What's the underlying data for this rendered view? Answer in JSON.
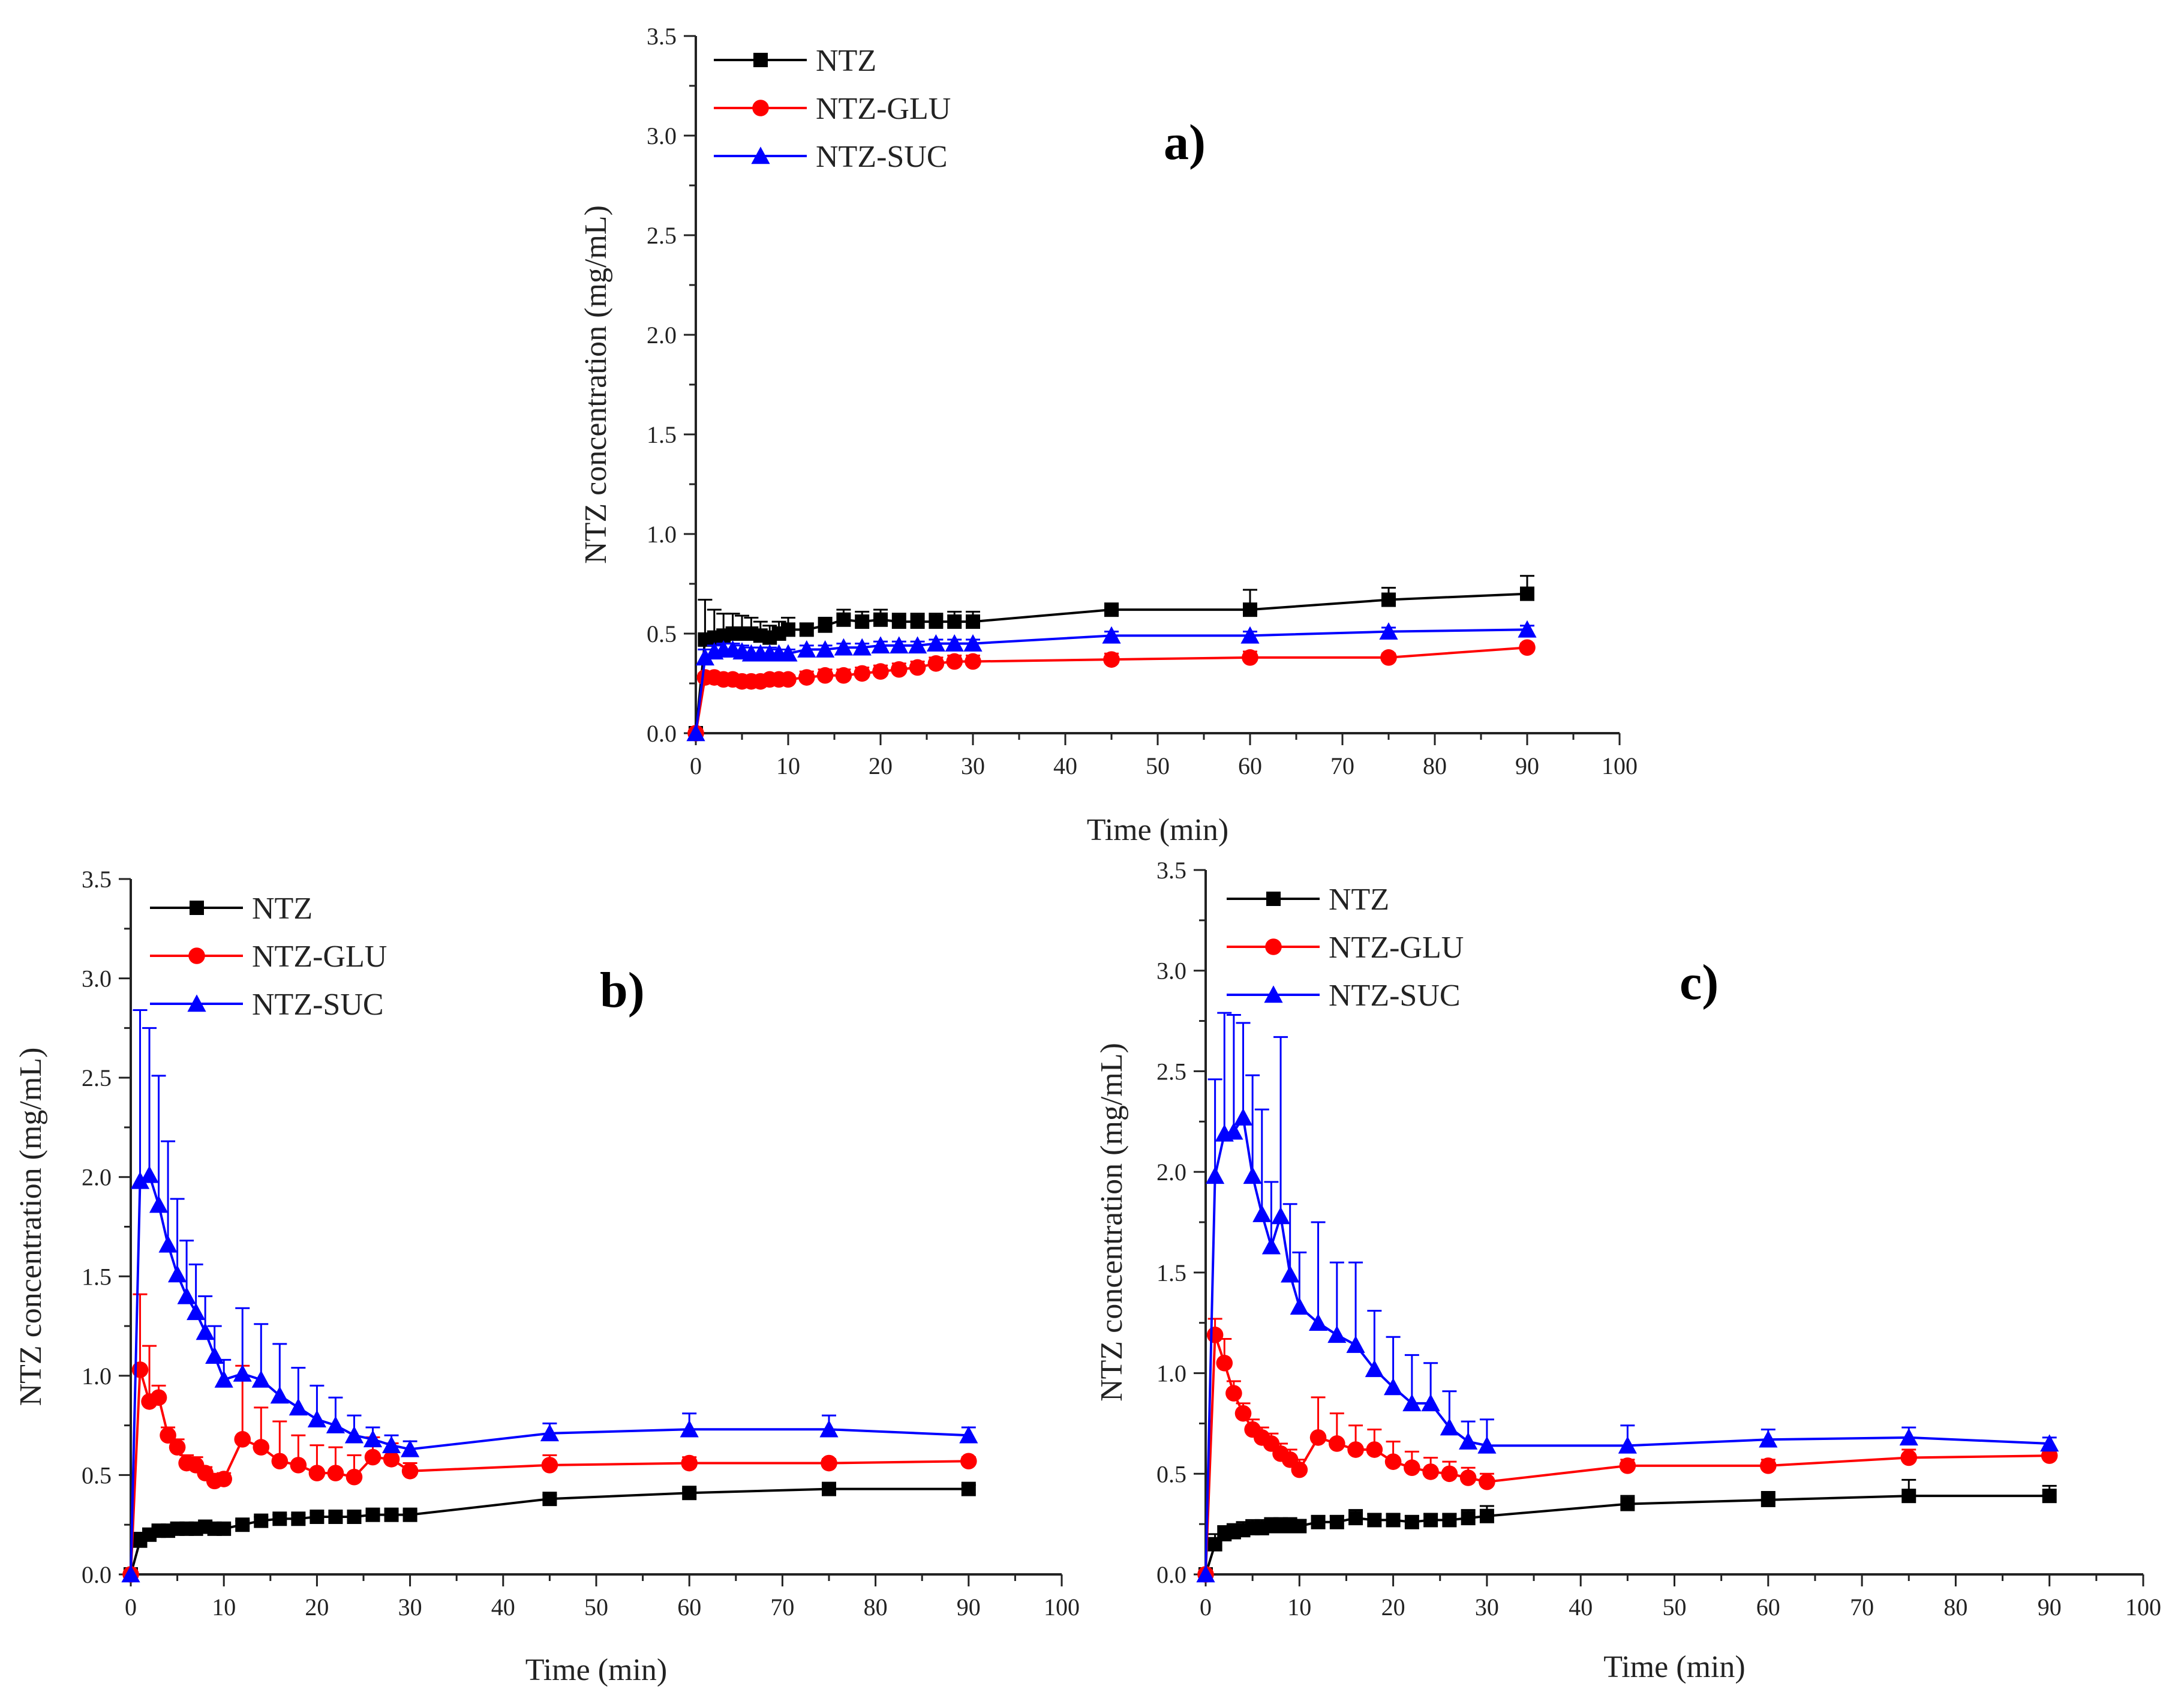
{
  "figure": {
    "series_styles": [
      {
        "name": "NTZ",
        "color": "#000000",
        "marker": "square"
      },
      {
        "name": "NTZ-GLU",
        "color": "#ff0000",
        "marker": "circle"
      },
      {
        "name": "NTZ-SUC",
        "color": "#0000ff",
        "marker": "triangle"
      }
    ]
  },
  "chart_data": [
    {
      "type": "line",
      "panel": "a)",
      "title": "a)",
      "xlabel": "Time (min)",
      "ylabel": "NTZ concentration (mg/mL)",
      "xlim": [
        0,
        100
      ],
      "ylim": [
        0,
        3.5
      ],
      "xticks": [
        "0",
        "10",
        "20",
        "30",
        "40",
        "50",
        "60",
        "70",
        "80",
        "90",
        "100"
      ],
      "yticks": [
        "0.0",
        "0.5",
        "1.0",
        "1.5",
        "2.0",
        "2.5",
        "3.0",
        "3.5"
      ],
      "legend": [
        "NTZ",
        "NTZ-GLU",
        "NTZ-SUC"
      ],
      "series": [
        {
          "name": "NTZ",
          "x": [
            0,
            1,
            2,
            3,
            4,
            5,
            6,
            7,
            8,
            9,
            10,
            12,
            14,
            16,
            18,
            20,
            22,
            24,
            26,
            28,
            30,
            45,
            60,
            75,
            90
          ],
          "y": [
            0,
            0.47,
            0.48,
            0.49,
            0.5,
            0.5,
            0.5,
            0.49,
            0.48,
            0.5,
            0.52,
            0.52,
            0.54,
            0.57,
            0.56,
            0.57,
            0.56,
            0.56,
            0.56,
            0.56,
            0.56,
            0.62,
            0.62,
            0.67,
            0.7
          ],
          "err": [
            0,
            0.2,
            0.14,
            0.11,
            0.1,
            0.09,
            0.08,
            0.07,
            0.06,
            0.06,
            0.06,
            0.03,
            0.04,
            0.05,
            0.05,
            0.05,
            0.04,
            0.04,
            0.04,
            0.05,
            0.05,
            0.03,
            0.1,
            0.06,
            0.09
          ]
        },
        {
          "name": "NTZ-GLU",
          "x": [
            0,
            1,
            2,
            3,
            4,
            5,
            6,
            7,
            8,
            9,
            10,
            12,
            14,
            16,
            18,
            20,
            22,
            24,
            26,
            28,
            30,
            45,
            60,
            75,
            90
          ],
          "y": [
            0,
            0.28,
            0.28,
            0.27,
            0.27,
            0.26,
            0.26,
            0.26,
            0.27,
            0.27,
            0.27,
            0.28,
            0.29,
            0.29,
            0.3,
            0.31,
            0.32,
            0.33,
            0.35,
            0.36,
            0.36,
            0.37,
            0.38,
            0.38,
            0.43
          ],
          "err": [
            0,
            0.02,
            0.02,
            0.02,
            0.02,
            0.02,
            0.02,
            0.02,
            0.02,
            0.02,
            0.02,
            0.03,
            0.03,
            0.03,
            0.03,
            0.03,
            0.03,
            0.03,
            0.03,
            0.03,
            0.03,
            0.03,
            0.03,
            0.02,
            0.02
          ]
        },
        {
          "name": "NTZ-SUC",
          "x": [
            0,
            1,
            2,
            3,
            4,
            5,
            6,
            7,
            8,
            9,
            10,
            12,
            14,
            16,
            18,
            20,
            22,
            24,
            26,
            28,
            30,
            45,
            60,
            75,
            90
          ],
          "y": [
            0,
            0.38,
            0.41,
            0.42,
            0.42,
            0.41,
            0.4,
            0.4,
            0.4,
            0.4,
            0.4,
            0.42,
            0.42,
            0.43,
            0.43,
            0.44,
            0.44,
            0.44,
            0.45,
            0.45,
            0.45,
            0.49,
            0.49,
            0.51,
            0.52
          ],
          "err": [
            0,
            0.04,
            0.03,
            0.03,
            0.03,
            0.03,
            0.03,
            0.03,
            0.03,
            0.02,
            0.02,
            0.02,
            0.02,
            0.02,
            0.02,
            0.02,
            0.02,
            0.02,
            0.02,
            0.02,
            0.02,
            0.02,
            0.02,
            0.02,
            0.02
          ]
        }
      ]
    },
    {
      "type": "line",
      "panel": "b)",
      "title": "b)",
      "xlabel": "Time (min)",
      "ylabel": "NTZ concentration (mg/mL)",
      "xlim": [
        0,
        100
      ],
      "ylim": [
        0,
        3.5
      ],
      "xticks": [
        "0",
        "10",
        "20",
        "30",
        "40",
        "50",
        "60",
        "70",
        "80",
        "90",
        "100"
      ],
      "yticks": [
        "0.0",
        "0.5",
        "1.0",
        "1.5",
        "2.0",
        "2.5",
        "3.0",
        "3.5"
      ],
      "legend": [
        "NTZ",
        "NTZ-GLU",
        "NTZ-SUC"
      ],
      "series": [
        {
          "name": "NTZ",
          "x": [
            0,
            1,
            2,
            3,
            4,
            5,
            6,
            7,
            8,
            9,
            10,
            12,
            14,
            16,
            18,
            20,
            22,
            24,
            26,
            28,
            30,
            45,
            60,
            75,
            90
          ],
          "y": [
            0,
            0.17,
            0.2,
            0.22,
            0.22,
            0.23,
            0.23,
            0.23,
            0.24,
            0.23,
            0.23,
            0.25,
            0.27,
            0.28,
            0.28,
            0.29,
            0.29,
            0.29,
            0.3,
            0.3,
            0.3,
            0.38,
            0.41,
            0.43,
            0.43
          ],
          "err": [
            0,
            0.04,
            0.03,
            0.02,
            0.02,
            0.02,
            0.02,
            0.02,
            0.02,
            0.02,
            0.02,
            0.02,
            0.02,
            0.02,
            0.02,
            0.02,
            0.02,
            0.02,
            0.02,
            0.02,
            0.02,
            0.02,
            0.02,
            0.02,
            0.02
          ]
        },
        {
          "name": "NTZ-GLU",
          "x": [
            0,
            1,
            2,
            3,
            4,
            5,
            6,
            7,
            8,
            9,
            10,
            12,
            14,
            16,
            18,
            20,
            22,
            24,
            26,
            28,
            30,
            45,
            60,
            75,
            90
          ],
          "y": [
            0,
            1.03,
            0.87,
            0.89,
            0.7,
            0.64,
            0.56,
            0.55,
            0.51,
            0.47,
            0.48,
            0.68,
            0.64,
            0.57,
            0.55,
            0.51,
            0.51,
            0.49,
            0.59,
            0.58,
            0.52,
            0.55,
            0.56,
            0.56,
            0.57
          ],
          "err": [
            0,
            0.38,
            0.28,
            0.06,
            0.04,
            0.04,
            0.04,
            0.04,
            0.03,
            0.03,
            0.03,
            0.37,
            0.2,
            0.2,
            0.15,
            0.14,
            0.13,
            0.11,
            0.1,
            0.08,
            0.04,
            0.05,
            0.03,
            0.02,
            0.02
          ]
        },
        {
          "name": "NTZ-SUC",
          "x": [
            0,
            1,
            2,
            3,
            4,
            5,
            6,
            7,
            8,
            9,
            10,
            12,
            14,
            16,
            18,
            20,
            22,
            24,
            26,
            28,
            30,
            45,
            60,
            75,
            90
          ],
          "y": [
            0,
            1.98,
            2.01,
            1.86,
            1.66,
            1.51,
            1.4,
            1.32,
            1.22,
            1.1,
            0.98,
            1.01,
            0.98,
            0.9,
            0.84,
            0.78,
            0.75,
            0.7,
            0.68,
            0.65,
            0.63,
            0.71,
            0.73,
            0.73,
            0.7
          ],
          "err": [
            0,
            0.86,
            0.74,
            0.65,
            0.52,
            0.38,
            0.28,
            0.24,
            0.18,
            0.15,
            0.1,
            0.33,
            0.28,
            0.26,
            0.2,
            0.17,
            0.14,
            0.1,
            0.06,
            0.05,
            0.04,
            0.05,
            0.08,
            0.07,
            0.04
          ]
        }
      ]
    },
    {
      "type": "line",
      "panel": "c)",
      "title": "c)",
      "xlabel": "Time (min)",
      "ylabel": "NTZ concentration (mg/mL)",
      "xlim": [
        0,
        100
      ],
      "ylim": [
        0,
        3.5
      ],
      "xticks": [
        "0",
        "10",
        "20",
        "30",
        "40",
        "50",
        "60",
        "70",
        "80",
        "90",
        "100"
      ],
      "yticks": [
        "0.0",
        "0.5",
        "1.0",
        "1.5",
        "2.0",
        "2.5",
        "3.0",
        "3.5"
      ],
      "legend": [
        "NTZ",
        "NTZ-GLU",
        "NTZ-SUC"
      ],
      "series": [
        {
          "name": "NTZ",
          "x": [
            0,
            1,
            2,
            3,
            4,
            5,
            6,
            7,
            8,
            9,
            10,
            12,
            14,
            16,
            18,
            20,
            22,
            24,
            26,
            28,
            30,
            45,
            60,
            75,
            90
          ],
          "y": [
            0,
            0.15,
            0.2,
            0.21,
            0.22,
            0.23,
            0.23,
            0.24,
            0.24,
            0.24,
            0.24,
            0.26,
            0.26,
            0.28,
            0.27,
            0.27,
            0.26,
            0.27,
            0.27,
            0.28,
            0.29,
            0.35,
            0.37,
            0.39,
            0.39
          ],
          "err": [
            0,
            0.05,
            0.04,
            0.04,
            0.04,
            0.04,
            0.04,
            0.04,
            0.04,
            0.04,
            0.03,
            0.03,
            0.03,
            0.04,
            0.03,
            0.03,
            0.03,
            0.03,
            0.03,
            0.04,
            0.05,
            0.04,
            0.04,
            0.08,
            0.05
          ]
        },
        {
          "name": "NTZ-GLU",
          "x": [
            0,
            1,
            2,
            3,
            4,
            5,
            6,
            7,
            8,
            9,
            10,
            12,
            14,
            16,
            18,
            20,
            22,
            24,
            26,
            28,
            30,
            45,
            60,
            75,
            90
          ],
          "y": [
            0,
            1.19,
            1.05,
            0.9,
            0.8,
            0.72,
            0.68,
            0.65,
            0.6,
            0.57,
            0.52,
            0.68,
            0.65,
            0.62,
            0.62,
            0.56,
            0.53,
            0.51,
            0.5,
            0.48,
            0.46,
            0.54,
            0.54,
            0.58,
            0.59
          ],
          "err": [
            0,
            0.08,
            0.12,
            0.06,
            0.05,
            0.05,
            0.05,
            0.05,
            0.05,
            0.05,
            0.05,
            0.2,
            0.15,
            0.12,
            0.1,
            0.1,
            0.08,
            0.07,
            0.06,
            0.05,
            0.04,
            0.03,
            0.03,
            0.04,
            0.03
          ]
        },
        {
          "name": "NTZ-SUC",
          "x": [
            0,
            1,
            2,
            3,
            4,
            5,
            6,
            7,
            8,
            9,
            10,
            12,
            14,
            16,
            18,
            20,
            22,
            24,
            26,
            28,
            30,
            45,
            60,
            75,
            90
          ],
          "y": [
            0,
            1.98,
            2.19,
            2.2,
            2.27,
            1.98,
            1.79,
            1.63,
            1.78,
            1.49,
            1.33,
            1.25,
            1.19,
            1.14,
            1.02,
            0.93,
            0.85,
            0.85,
            0.73,
            0.66,
            0.64,
            0.64,
            0.67,
            0.68,
            0.65
          ],
          "err": [
            0,
            0.48,
            0.6,
            0.58,
            0.47,
            0.5,
            0.52,
            0.32,
            0.89,
            0.35,
            0.27,
            0.5,
            0.36,
            0.41,
            0.29,
            0.25,
            0.24,
            0.2,
            0.18,
            0.1,
            0.13,
            0.1,
            0.05,
            0.05,
            0.03
          ]
        }
      ]
    }
  ]
}
